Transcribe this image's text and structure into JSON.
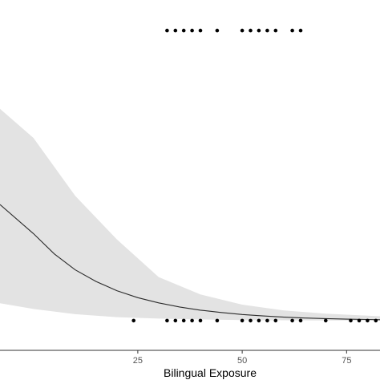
{
  "chart_data": {
    "type": "line",
    "title": "",
    "xlabel": "Bilingual Exposure",
    "ylabel": "",
    "xlim": [
      -8,
      83
    ],
    "ylim": [
      -0.05,
      1.05
    ],
    "grid": false,
    "x_ticks": [
      {
        "value": 25,
        "label": "25"
      },
      {
        "value": 50,
        "label": "50"
      },
      {
        "value": 75,
        "label": "75"
      }
    ],
    "fit_line": {
      "x": [
        -8,
        0,
        5,
        10,
        15,
        20,
        25,
        30,
        35,
        40,
        45,
        50,
        55,
        60,
        65,
        70,
        75,
        80,
        83
      ],
      "y": [
        0.4,
        0.3,
        0.23,
        0.175,
        0.135,
        0.103,
        0.079,
        0.061,
        0.047,
        0.036,
        0.028,
        0.021,
        0.016,
        0.012,
        0.009,
        0.007,
        0.005,
        0.004,
        0.003
      ]
    },
    "ci_band": {
      "x": [
        -8,
        0,
        10,
        20,
        30,
        40,
        50,
        60,
        70,
        80,
        83
      ],
      "upper": [
        0.73,
        0.63,
        0.43,
        0.28,
        0.15,
        0.09,
        0.055,
        0.035,
        0.024,
        0.017,
        0.015
      ],
      "lower": [
        0.06,
        0.04,
        0.022,
        0.012,
        0.007,
        0.004,
        0.002,
        0.001,
        0.0005,
        0.0003,
        0.0002
      ]
    },
    "points_y1": {
      "y": 1,
      "x": [
        32,
        34,
        36,
        38,
        40,
        44,
        50,
        52,
        54,
        56,
        58,
        62,
        64
      ]
    },
    "points_y0": {
      "y": 0,
      "x": [
        24,
        32,
        34,
        36,
        38,
        40,
        44,
        50,
        52,
        54,
        56,
        58,
        62,
        64,
        70,
        76,
        78,
        80,
        82
      ]
    },
    "colors": {
      "band": "#e3e3e3",
      "line": "#2b2b2b",
      "points": "#000000",
      "axis": "#333333"
    }
  }
}
